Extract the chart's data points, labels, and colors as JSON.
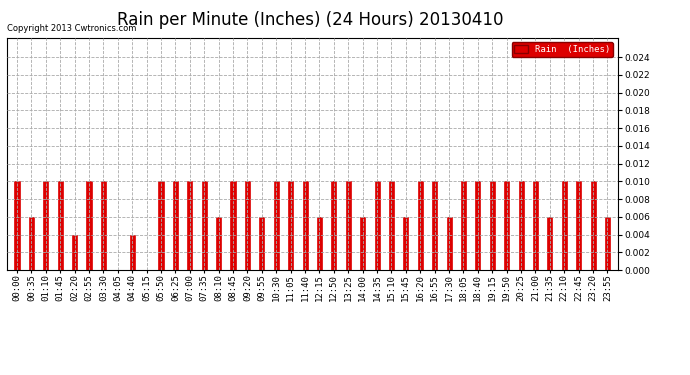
{
  "title": "Rain per Minute (Inches) (24 Hours) 20130410",
  "copyright": "Copyright 2013 Cwtronics.com",
  "legend_label": "Rain  (Inches)",
  "bar_color": "#dd0000",
  "background_color": "#ffffff",
  "grid_color": "#aaaaaa",
  "ylim": [
    0,
    0.0262
  ],
  "yticks": [
    0.0,
    0.002,
    0.004,
    0.006,
    0.008,
    0.01,
    0.012,
    0.014,
    0.016,
    0.018,
    0.02,
    0.022,
    0.024
  ],
  "title_fontsize": 12,
  "tick_fontsize": 6.5,
  "times": [
    "00:00",
    "00:35",
    "01:10",
    "01:45",
    "02:20",
    "02:55",
    "03:30",
    "04:05",
    "04:40",
    "05:15",
    "05:50",
    "06:25",
    "07:00",
    "07:35",
    "08:10",
    "08:45",
    "09:20",
    "09:55",
    "10:30",
    "11:05",
    "11:40",
    "12:15",
    "12:50",
    "13:25",
    "14:00",
    "14:35",
    "15:10",
    "15:45",
    "16:20",
    "16:55",
    "17:30",
    "18:05",
    "18:40",
    "19:15",
    "19:50",
    "20:25",
    "21:00",
    "21:35",
    "22:10",
    "22:45",
    "23:20",
    "23:55"
  ],
  "values": [
    0.01,
    0.006,
    0.01,
    0.01,
    0.004,
    0.01,
    0.01,
    0.0,
    0.004,
    0.0,
    0.01,
    0.01,
    0.01,
    0.01,
    0.006,
    0.01,
    0.01,
    0.006,
    0.01,
    0.01,
    0.01,
    0.006,
    0.01,
    0.01,
    0.006,
    0.01,
    0.01,
    0.006,
    0.01,
    0.01,
    0.006,
    0.01,
    0.01,
    0.01,
    0.01,
    0.01,
    0.01,
    0.006,
    0.01,
    0.01,
    0.01,
    0.006
  ]
}
